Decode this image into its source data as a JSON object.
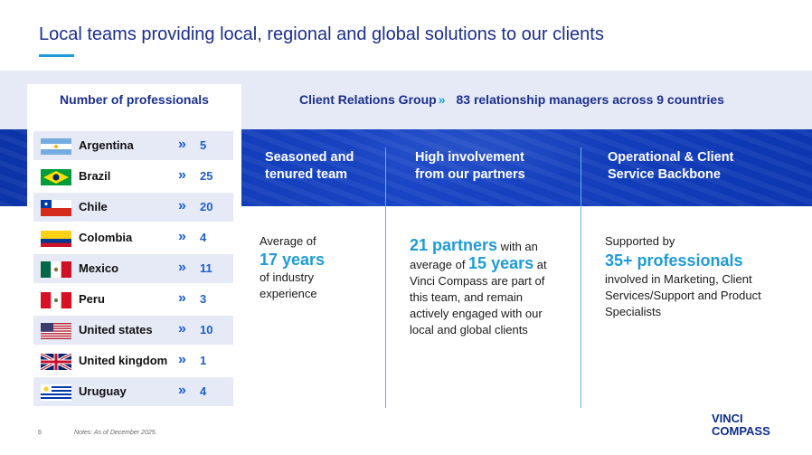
{
  "header": {
    "title": "Local teams providing local, regional and global solutions to our clients"
  },
  "band": {
    "crg_label": "Client Relations Group",
    "crg_chevron": "»",
    "managers_text": "83 relationship managers across 9 countries"
  },
  "professionals": {
    "header": "Number of professionals",
    "chevron": "»",
    "rows": [
      {
        "country": "Argentina",
        "count": "5",
        "flag": "argentina-flag-icon"
      },
      {
        "country": "Brazil",
        "count": "25",
        "flag": "brazil-flag-icon"
      },
      {
        "country": "Chile",
        "count": "20",
        "flag": "chile-flag-icon"
      },
      {
        "country": "Colombia",
        "count": "4",
        "flag": "colombia-flag-icon"
      },
      {
        "country": "Mexico",
        "count": "11",
        "flag": "mexico-flag-icon"
      },
      {
        "country": "Peru",
        "count": "3",
        "flag": "peru-flag-icon"
      },
      {
        "country": "United states",
        "count": "10",
        "flag": "usa-flag-icon"
      },
      {
        "country": "United kingdom",
        "count": "1",
        "flag": "uk-flag-icon"
      },
      {
        "country": "Uruguay",
        "count": "4",
        "flag": "uruguay-flag-icon"
      }
    ]
  },
  "columns": [
    {
      "title": "Seasoned and\ntenured team",
      "pre": "Average of",
      "highlight": "17 years",
      "post": "of industry experience"
    },
    {
      "title": "High involvement\nfrom our partners",
      "highlight1": "21 partners",
      "text1": " with an average of ",
      "highlight2": "15 years",
      "text2": " at Vinci Compass are part of this team, and remain actively engaged with our local and global clients"
    },
    {
      "title": "Operational & Client\nService Backbone",
      "pre": "Supported by",
      "highlight": "35+ professionals",
      "post": "involved in Marketing, Client Services/Support and Product Specialists"
    }
  ],
  "footer": {
    "page_number": "6",
    "note": "Notes: As of December  2025."
  },
  "logo": {
    "line1": "VINCI",
    "line2": "COMPASS"
  },
  "colors": {
    "brand_navy": "#1b2f8c",
    "accent_cyan": "#1e9bd7",
    "band_blue": "#1845c6",
    "row_shade": "#e6eaf6"
  }
}
